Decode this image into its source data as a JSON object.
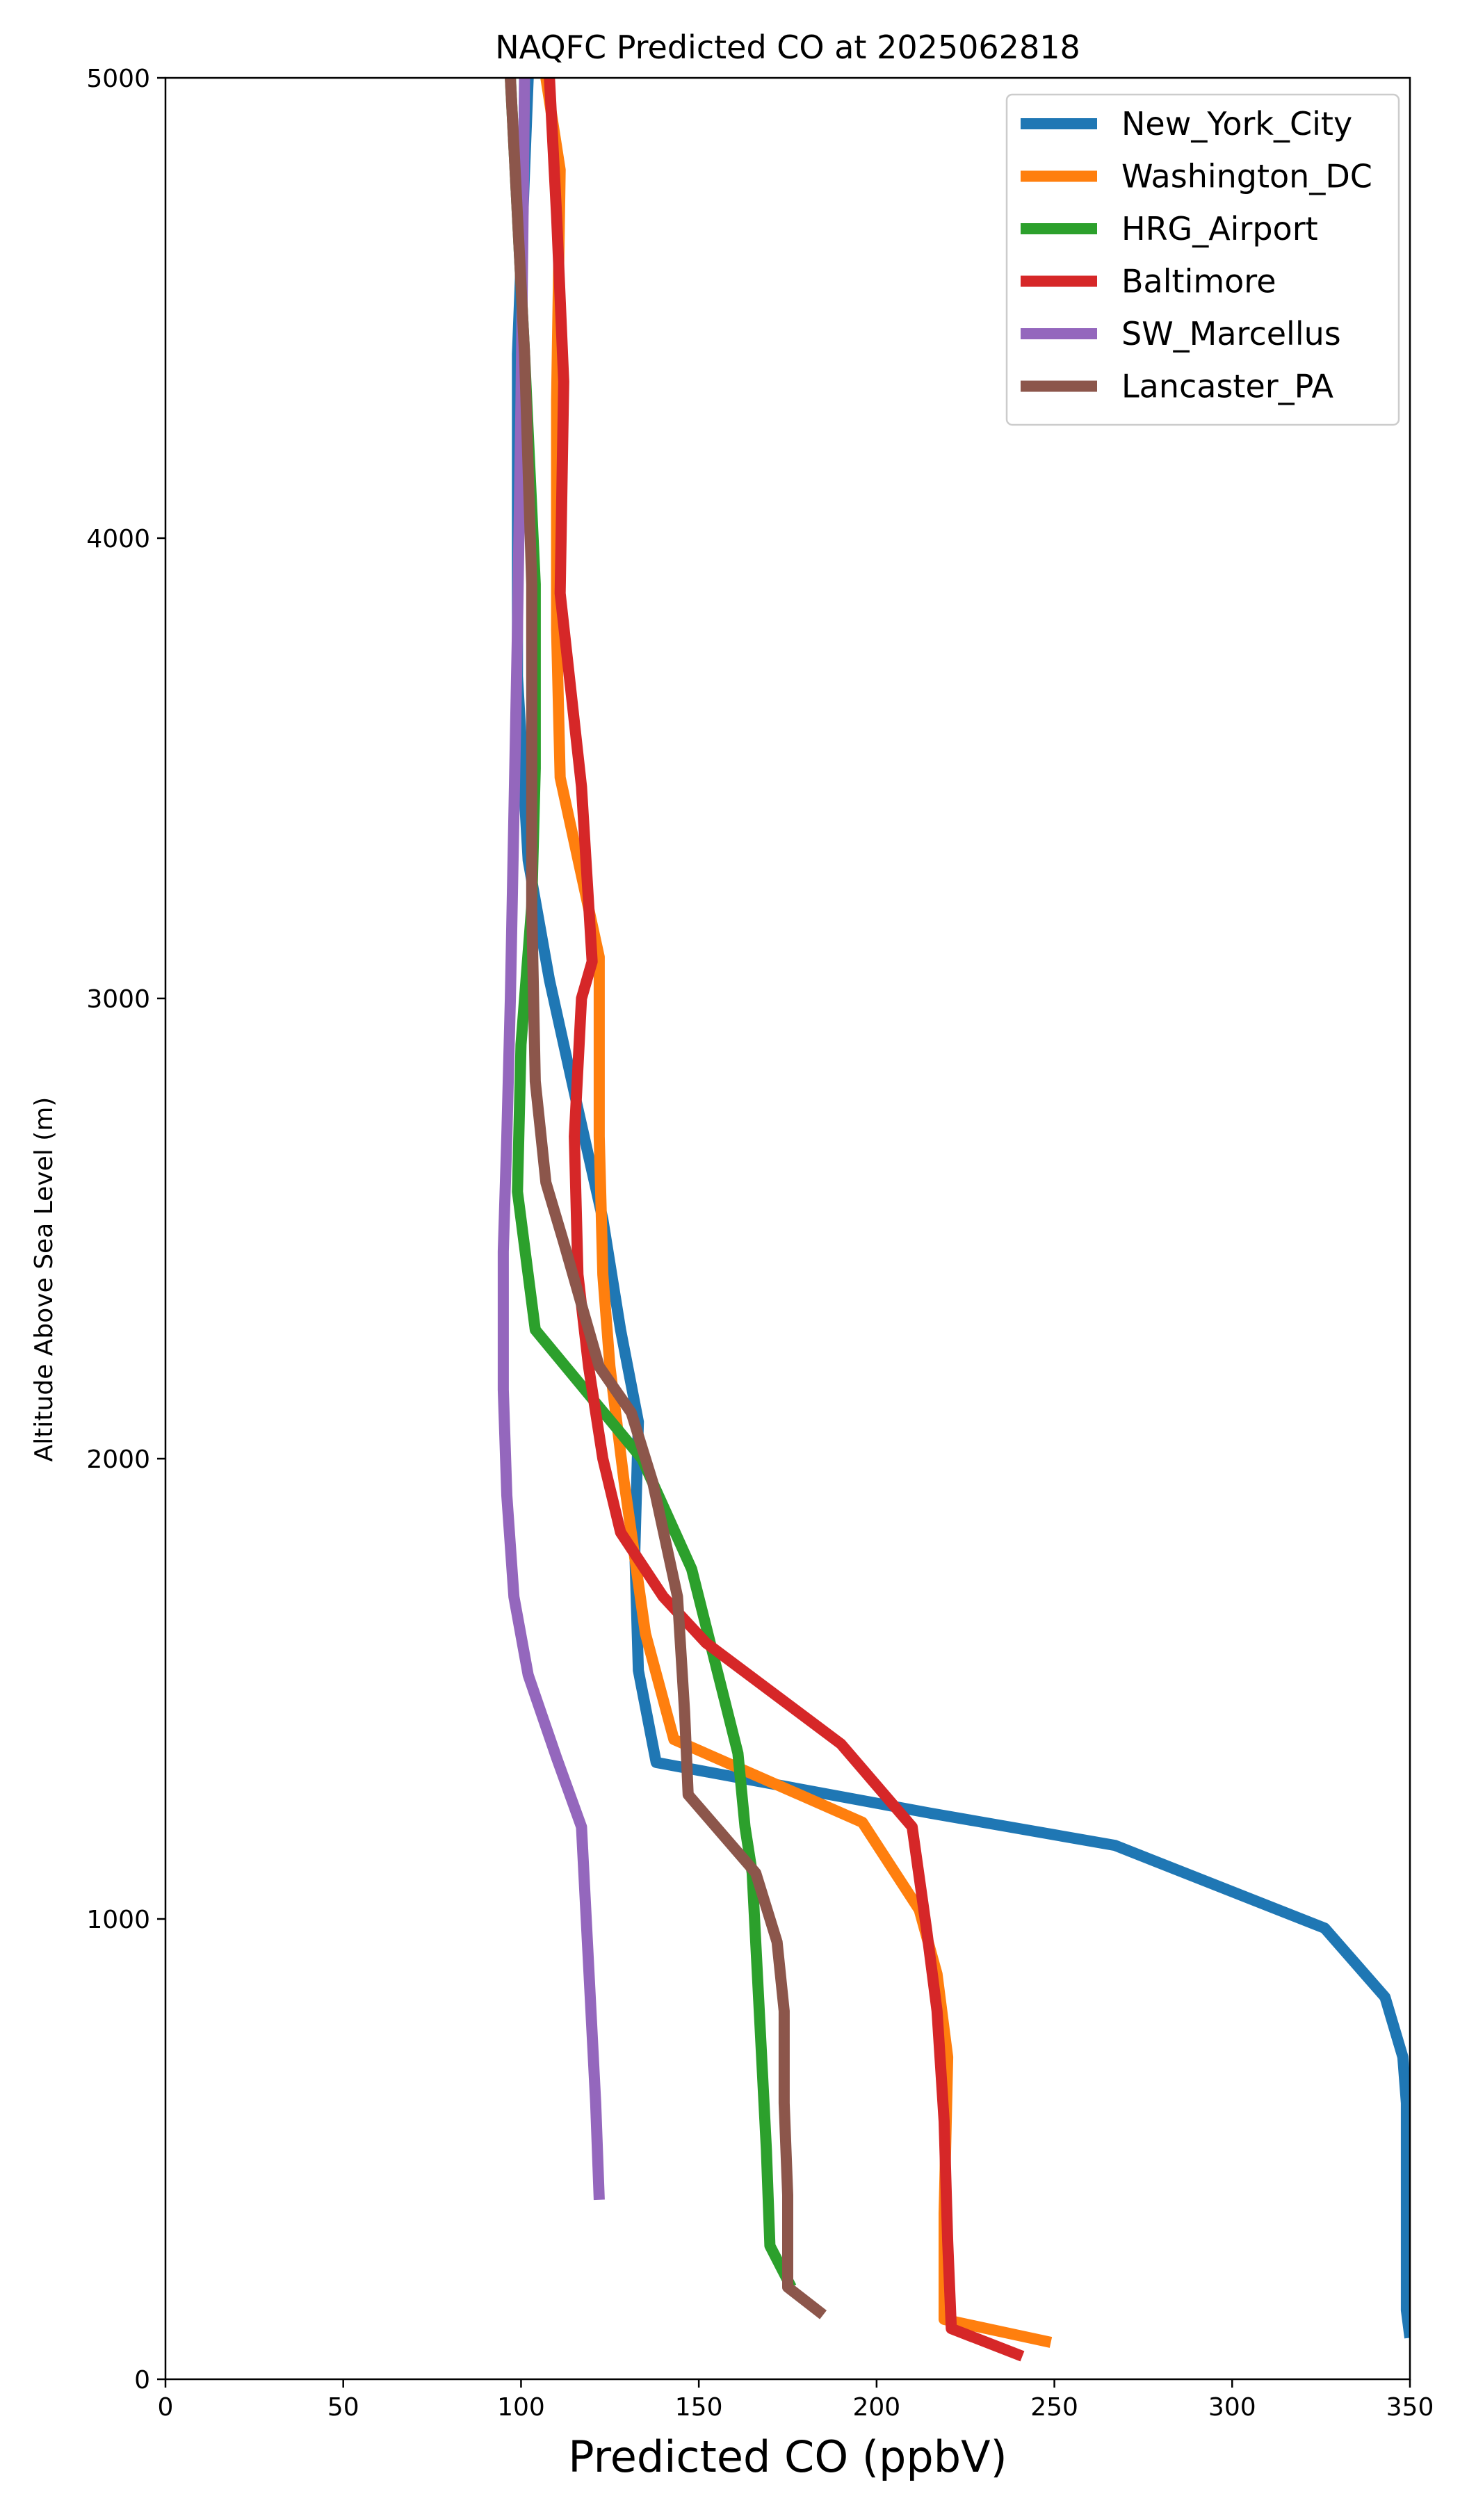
{
  "chart_data": {
    "type": "line",
    "title": "NAQFC Predicted CO at 2025062818",
    "xlabel": "Predicted CO (ppbV)",
    "ylabel": "Altitude Above Sea Level (m)",
    "xlim": [
      0,
      350
    ],
    "ylim": [
      0,
      5000
    ],
    "xticks": [
      0,
      50,
      100,
      150,
      200,
      250,
      300,
      350
    ],
    "yticks": [
      0,
      1000,
      2000,
      3000,
      4000,
      5000
    ],
    "grid": false,
    "legend_position": "top-right",
    "series": [
      {
        "name": "New_York_City",
        "color": "#1f77b4",
        "points": [
          [
            350,
            90
          ],
          [
            349,
            150
          ],
          [
            349,
            400
          ],
          [
            349,
            600
          ],
          [
            348,
            700
          ],
          [
            343,
            830
          ],
          [
            326,
            980
          ],
          [
            267,
            1160
          ],
          [
            215,
            1230
          ],
          [
            138,
            1340
          ],
          [
            133,
            1540
          ],
          [
            132,
            1800
          ],
          [
            133,
            2080
          ],
          [
            128,
            2280
          ],
          [
            123,
            2520
          ],
          [
            116,
            2760
          ],
          [
            108,
            3040
          ],
          [
            102,
            3300
          ],
          [
            99,
            3700
          ],
          [
            99,
            4400
          ],
          [
            102,
            5000
          ]
        ]
      },
      {
        "name": "Washington_DC",
        "color": "#ff7f0e",
        "points": [
          [
            249,
            80
          ],
          [
            219,
            130
          ],
          [
            219,
            360
          ],
          [
            220,
            700
          ],
          [
            217,
            880
          ],
          [
            212,
            1020
          ],
          [
            196,
            1210
          ],
          [
            143,
            1390
          ],
          [
            135,
            1620
          ],
          [
            129,
            1950
          ],
          [
            125,
            2200
          ],
          [
            123,
            2400
          ],
          [
            122,
            2700
          ],
          [
            122,
            2900
          ],
          [
            122,
            3090
          ],
          [
            111,
            3480
          ],
          [
            110,
            3800
          ],
          [
            110,
            4300
          ],
          [
            111,
            4800
          ],
          [
            107,
            5000
          ]
        ]
      },
      {
        "name": "HRG_Airport",
        "color": "#2ca02c",
        "points": [
          [
            176,
            200
          ],
          [
            170,
            290
          ],
          [
            169,
            500
          ],
          [
            167,
            800
          ],
          [
            165,
            1100
          ],
          [
            163,
            1200
          ],
          [
            161,
            1360
          ],
          [
            148,
            1760
          ],
          [
            134,
            2000
          ],
          [
            104,
            2280
          ],
          [
            99,
            2580
          ],
          [
            100,
            2900
          ],
          [
            103,
            3200
          ],
          [
            104,
            3500
          ],
          [
            104,
            3900
          ],
          [
            101,
            4400
          ],
          [
            97,
            5000
          ]
        ]
      },
      {
        "name": "Baltimore",
        "color": "#d62728",
        "points": [
          [
            241,
            50
          ],
          [
            221,
            110
          ],
          [
            220,
            300
          ],
          [
            219,
            560
          ],
          [
            217,
            800
          ],
          [
            214,
            980
          ],
          [
            210,
            1200
          ],
          [
            190,
            1380
          ],
          [
            152,
            1600
          ],
          [
            140,
            1700
          ],
          [
            128,
            1840
          ],
          [
            123,
            2000
          ],
          [
            119,
            2200
          ],
          [
            116,
            2400
          ],
          [
            115,
            2700
          ],
          [
            117,
            3000
          ],
          [
            120,
            3080
          ],
          [
            117,
            3460
          ],
          [
            111,
            3880
          ],
          [
            112,
            4340
          ],
          [
            110,
            4700
          ],
          [
            108,
            5000
          ]
        ]
      },
      {
        "name": "SW_Marcellus",
        "color": "#9467bd",
        "points": [
          [
            122,
            390
          ],
          [
            121,
            600
          ],
          [
            119,
            900
          ],
          [
            118,
            1050
          ],
          [
            117,
            1200
          ],
          [
            110,
            1350
          ],
          [
            102,
            1530
          ],
          [
            98,
            1700
          ],
          [
            96,
            1920
          ],
          [
            95,
            2150
          ],
          [
            95,
            2450
          ],
          [
            96,
            2700
          ],
          [
            97,
            3000
          ],
          [
            98,
            3400
          ],
          [
            99,
            3800
          ],
          [
            100,
            4300
          ],
          [
            101,
            5000
          ]
        ]
      },
      {
        "name": "Lancaster_PA",
        "color": "#8c564b",
        "points": [
          [
            185,
            140
          ],
          [
            175,
            200
          ],
          [
            175,
            400
          ],
          [
            174,
            600
          ],
          [
            174,
            800
          ],
          [
            172,
            950
          ],
          [
            166,
            1100
          ],
          [
            147,
            1270
          ],
          [
            146,
            1450
          ],
          [
            144,
            1700
          ],
          [
            137,
            1950
          ],
          [
            131,
            2100
          ],
          [
            122,
            2200
          ],
          [
            112,
            2470
          ],
          [
            107,
            2600
          ],
          [
            104,
            2820
          ],
          [
            103,
            3200
          ],
          [
            103,
            3500
          ],
          [
            103,
            3900
          ],
          [
            101,
            4400
          ],
          [
            99,
            4700
          ],
          [
            97,
            5000
          ]
        ]
      }
    ]
  }
}
